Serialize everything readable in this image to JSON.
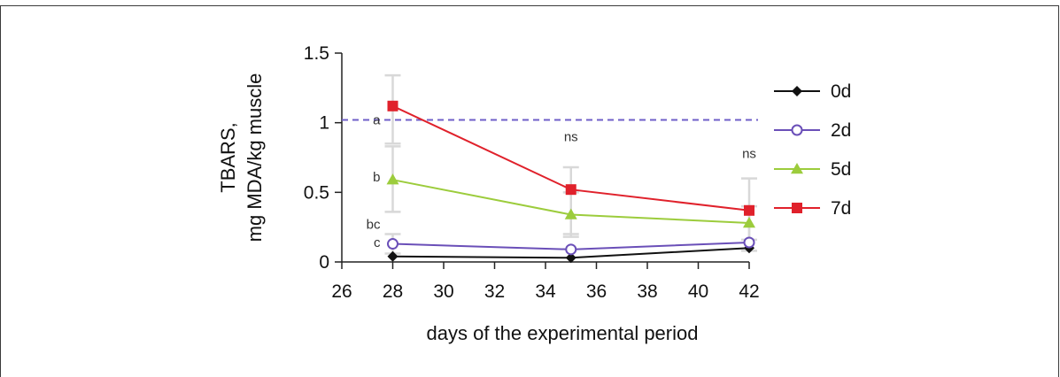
{
  "chart_data": {
    "type": "line",
    "xlabel": "days of the experimental period",
    "ylabel_line1": "TBARS,",
    "ylabel_line2": "mg MDA/kg muscle",
    "xlim": [
      26,
      42
    ],
    "ylim": [
      0,
      1.5
    ],
    "x_ticks": [
      "26",
      "28",
      "30",
      "32",
      "34",
      "36",
      "38",
      "40",
      "42"
    ],
    "y_ticks": [
      "0",
      "0.5",
      "1",
      "1.5"
    ],
    "x": [
      28,
      35,
      42
    ],
    "series": [
      {
        "name": "0d",
        "values": [
          0.04,
          0.03,
          0.1
        ],
        "color": "#111111",
        "marker": "diamond-filled"
      },
      {
        "name": "2d",
        "values": [
          0.13,
          0.09,
          0.14
        ],
        "color": "#6a4fb8",
        "marker": "circle-open"
      },
      {
        "name": "5d",
        "values": [
          0.59,
          0.34,
          0.28
        ],
        "color": "#9ccc3c",
        "marker": "triangle-filled"
      },
      {
        "name": "7d",
        "values": [
          1.12,
          0.52,
          0.37
        ],
        "color": "#e0212b",
        "marker": "square-filled"
      }
    ],
    "error_bars": [
      {
        "x": 28,
        "low": 0.85,
        "high": 1.34
      },
      {
        "x": 28,
        "low": 0.36,
        "high": 0.83
      },
      {
        "x": 28,
        "low": 0.06,
        "high": 0.2
      },
      {
        "x": 35,
        "low": 0.2,
        "high": 0.68
      },
      {
        "x": 35,
        "low": 0.18,
        "high": 0.5
      },
      {
        "x": 42,
        "low": 0.08,
        "high": 0.6
      },
      {
        "x": 42,
        "low": 0.16,
        "high": 0.4
      }
    ],
    "reference_line": {
      "y": 1.02,
      "color": "#6f5fc8",
      "style": "dashed"
    },
    "annotations": [
      {
        "text": "a",
        "x": 28,
        "y": 1.02
      },
      {
        "text": "b",
        "x": 28,
        "y": 0.61
      },
      {
        "text": "bc",
        "x": 28,
        "y": 0.27
      },
      {
        "text": "c",
        "x": 28,
        "y": 0.14
      },
      {
        "text": "ns",
        "x": 35,
        "y": 0.9
      },
      {
        "text": "ns",
        "x": 42,
        "y": 0.78
      }
    ],
    "legend_position": "right",
    "grid": false
  }
}
